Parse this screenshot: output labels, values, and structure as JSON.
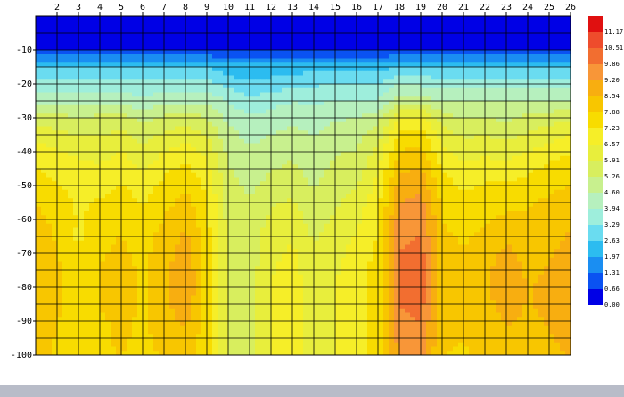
{
  "chart_data": {
    "type": "contour",
    "x": [
      1,
      2,
      3,
      4,
      5,
      6,
      7,
      8,
      9,
      10,
      11,
      12,
      13,
      14,
      15,
      16,
      17,
      18,
      19,
      20,
      21,
      22,
      23,
      24,
      25,
      26
    ],
    "depths": [
      0,
      -5,
      -10,
      -15,
      -20,
      -25,
      -30,
      -35,
      -40,
      -45,
      -50,
      -55,
      -60,
      -65,
      -70,
      -75,
      -80,
      -85,
      -90,
      -95,
      -100
    ],
    "xlim": [
      1,
      26
    ],
    "xticks": [
      2,
      3,
      4,
      5,
      6,
      7,
      8,
      9,
      10,
      11,
      12,
      13,
      14,
      15,
      16,
      17,
      18,
      19,
      20,
      21,
      22,
      23,
      24,
      25,
      26
    ],
    "ylim": [
      -100,
      0
    ],
    "yticks": [
      -10,
      -20,
      -30,
      -40,
      -50,
      -60,
      -70,
      -80,
      -90,
      -100
    ],
    "grid": true,
    "levels": [
      {
        "value": 0,
        "label": "0.00"
      },
      0.66,
      1.31,
      1.97,
      2.63,
      3.29,
      3.94,
      {
        "value": 4.6,
        "label": "4.60"
      },
      5.26,
      5.91,
      6.57,
      7.23,
      7.88,
      8.54,
      {
        "value": 9.2,
        "label": "9.20"
      },
      9.86,
      10.51,
      11.17
    ],
    "colors": [
      "#0000e6",
      "#0a52f2",
      "#1a8ef2",
      "#2cbcf0",
      "#6adcf0",
      "#9eeedc",
      "#b6f0be",
      "#c8f08e",
      "#d8ee5e",
      "#e8ee3c",
      "#f6ee28",
      "#f8dc00",
      "#f8c600",
      "#f8ae10",
      "#f89638",
      "#f26e30",
      "#ee4c2c",
      "#e01010"
    ],
    "values": [
      [
        0.2,
        0.2,
        0.2,
        0.2,
        0.2,
        0.2,
        0.2,
        0.2,
        0.2,
        0.2,
        0.2,
        0.2,
        0.2,
        0.2,
        0.2,
        0.2,
        0.2,
        0.2,
        0.2,
        0.2,
        0.2,
        0.2,
        0.2,
        0.2,
        0.2,
        0.2
      ],
      [
        0.3,
        0.3,
        0.3,
        0.3,
        0.3,
        0.3,
        0.3,
        0.3,
        0.3,
        0.3,
        0.3,
        0.3,
        0.3,
        0.3,
        0.3,
        0.3,
        0.3,
        0.3,
        0.3,
        0.3,
        0.3,
        0.3,
        0.3,
        0.3,
        0.3,
        0.3
      ],
      [
        0.6,
        0.6,
        0.6,
        0.6,
        0.6,
        0.6,
        0.6,
        0.6,
        0.6,
        0.6,
        0.6,
        0.6,
        0.6,
        0.6,
        0.6,
        0.6,
        0.6,
        0.6,
        0.6,
        0.6,
        0.6,
        0.6,
        0.6,
        0.6,
        0.6,
        0.6
      ],
      [
        2.6,
        2.6,
        2.6,
        2.6,
        2.6,
        2.6,
        2.6,
        2.6,
        2.6,
        2.2,
        2.2,
        2.2,
        2.2,
        2.4,
        2.4,
        2.4,
        2.4,
        2.6,
        2.6,
        2.6,
        2.5,
        2.5,
        2.5,
        2.5,
        2.5,
        2.5
      ],
      [
        3.5,
        3.5,
        3.5,
        3.5,
        3.5,
        3.5,
        3.5,
        3.5,
        3.5,
        3.0,
        2.7,
        2.9,
        3.1,
        3.2,
        3.3,
        3.3,
        3.3,
        3.9,
        3.8,
        3.6,
        3.6,
        3.6,
        3.6,
        3.6,
        3.6,
        3.6
      ],
      [
        4.4,
        4.4,
        4.4,
        4.4,
        4.4,
        4.0,
        4.4,
        4.4,
        4.4,
        3.9,
        3.5,
        3.7,
        3.9,
        3.8,
        4.0,
        4.0,
        4.0,
        5.0,
        4.9,
        4.6,
        4.6,
        4.6,
        4.6,
        4.6,
        4.6,
        4.6
      ],
      [
        5.6,
        5.5,
        5.3,
        5.4,
        5.5,
        5.0,
        5.4,
        5.6,
        5.3,
        4.4,
        4.0,
        4.2,
        4.4,
        4.3,
        4.5,
        4.6,
        5.0,
        6.6,
        6.8,
        5.6,
        5.2,
        5.3,
        5.1,
        5.4,
        5.6,
        5.8
      ],
      [
        6.3,
        6.1,
        5.9,
        5.9,
        6.1,
        5.6,
        6.0,
        6.3,
        5.9,
        4.8,
        4.4,
        4.6,
        4.8,
        4.6,
        4.9,
        5.0,
        5.6,
        7.3,
        7.5,
        6.2,
        5.8,
        5.9,
        5.7,
        6.0,
        6.3,
        6.6
      ],
      [
        6.9,
        6.6,
        6.4,
        6.3,
        6.6,
        6.0,
        6.6,
        6.9,
        6.4,
        5.1,
        4.7,
        4.9,
        5.1,
        4.8,
        5.2,
        5.3,
        6.1,
        7.9,
        8.1,
        6.8,
        6.3,
        6.4,
        6.3,
        6.6,
        6.9,
        7.2
      ],
      [
        7.3,
        7.0,
        6.8,
        6.7,
        7.0,
        6.5,
        7.1,
        7.4,
        6.8,
        5.3,
        4.9,
        5.2,
        5.4,
        5.0,
        5.4,
        5.6,
        6.5,
        8.4,
        8.6,
        7.2,
        6.8,
        6.9,
        6.9,
        7.1,
        7.4,
        7.6
      ],
      [
        7.6,
        7.3,
        7.0,
        7.0,
        7.3,
        6.9,
        7.4,
        7.8,
        7.1,
        5.5,
        5.1,
        5.5,
        5.7,
        5.2,
        5.6,
        5.9,
        6.8,
        8.8,
        9.0,
        7.5,
        7.1,
        7.3,
        7.3,
        7.5,
        7.7,
        7.9
      ],
      [
        7.9,
        7.5,
        7.1,
        7.3,
        7.5,
        7.2,
        7.7,
        8.1,
        7.3,
        5.6,
        5.3,
        5.8,
        6.0,
        5.4,
        5.8,
        6.2,
        7.0,
        9.2,
        9.4,
        7.7,
        7.4,
        7.6,
        7.7,
        7.8,
        8.0,
        8.2
      ],
      [
        8.1,
        7.7,
        7.2,
        7.5,
        7.7,
        7.4,
        7.9,
        8.4,
        7.4,
        5.7,
        5.4,
        6.1,
        6.3,
        5.6,
        6.0,
        6.4,
        7.2,
        9.5,
        9.7,
        7.9,
        7.6,
        7.8,
        8.0,
        8.0,
        8.2,
        8.4
      ],
      [
        8.3,
        7.8,
        7.1,
        7.7,
        7.9,
        7.6,
        8.1,
        8.7,
        7.5,
        5.8,
        5.5,
        6.3,
        6.5,
        5.8,
        6.2,
        6.6,
        7.3,
        9.7,
        9.9,
        8.0,
        7.8,
        8.0,
        8.4,
        8.2,
        8.4,
        8.6
      ],
      [
        8.4,
        7.9,
        7.3,
        7.8,
        8.0,
        7.7,
        8.2,
        8.9,
        7.6,
        5.9,
        5.5,
        6.4,
        6.7,
        6.0,
        6.4,
        6.8,
        7.4,
        9.9,
        10.1,
        8.1,
        7.9,
        8.2,
        8.7,
        8.3,
        8.5,
        8.7
      ],
      [
        8.5,
        8.0,
        7.5,
        7.9,
        8.1,
        7.8,
        8.3,
        9.1,
        7.6,
        5.9,
        5.6,
        6.5,
        6.8,
        6.1,
        6.5,
        6.9,
        7.5,
        10.0,
        10.2,
        8.2,
        8.1,
        8.3,
        9.0,
        8.4,
        8.6,
        8.8
      ],
      [
        8.6,
        8.0,
        7.6,
        7.9,
        8.1,
        7.8,
        8.3,
        9.2,
        7.6,
        5.9,
        5.6,
        6.6,
        6.9,
        6.2,
        6.6,
        7.0,
        7.5,
        10.0,
        10.2,
        8.2,
        8.3,
        8.3,
        9.2,
        8.5,
        8.7,
        8.9
      ],
      [
        8.6,
        8.0,
        7.6,
        7.9,
        8.1,
        7.8,
        8.3,
        9.0,
        7.6,
        5.9,
        5.6,
        6.6,
        6.9,
        6.2,
        6.6,
        7.0,
        7.5,
        9.9,
        10.1,
        8.2,
        8.1,
        8.3,
        8.9,
        8.5,
        8.7,
        8.9
      ],
      [
        8.5,
        7.9,
        7.6,
        7.8,
        8.0,
        7.8,
        8.2,
        8.7,
        7.6,
        5.9,
        5.6,
        6.6,
        6.9,
        6.3,
        6.6,
        7.0,
        7.5,
        9.7,
        9.9,
        8.1,
        8.0,
        8.2,
        8.6,
        8.4,
        8.6,
        8.8
      ],
      [
        8.4,
        7.8,
        7.6,
        7.8,
        8.0,
        7.7,
        8.1,
        8.4,
        7.5,
        5.9,
        5.6,
        6.6,
        6.9,
        6.3,
        6.6,
        7.0,
        7.4,
        9.5,
        9.6,
        8.0,
        7.9,
        8.1,
        8.3,
        8.3,
        8.5,
        8.7
      ],
      [
        8.3,
        7.8,
        7.5,
        7.7,
        7.9,
        7.6,
        8.0,
        8.2,
        7.5,
        5.9,
        5.6,
        6.6,
        6.9,
        6.3,
        6.6,
        7.0,
        7.4,
        9.3,
        9.4,
        7.9,
        7.8,
        8.0,
        8.1,
        8.2,
        8.4,
        8.6
      ]
    ]
  }
}
